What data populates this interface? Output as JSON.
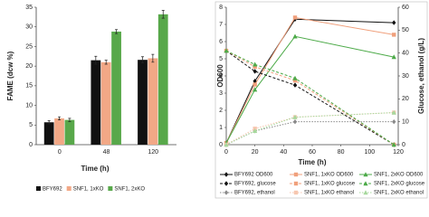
{
  "chart_data": [
    {
      "type": "bar",
      "ylabel": "FAME (dcw %)",
      "xlabel": "Time (h)",
      "categories": [
        "0",
        "48",
        "120"
      ],
      "series": [
        {
          "name": "BFY692",
          "color": "#111111",
          "values": [
            5.7,
            21.5,
            21.6
          ],
          "errors": [
            0.4,
            1.0,
            0.8
          ]
        },
        {
          "name": "SNF1, 1xKO",
          "color": "#f2a886",
          "values": [
            6.7,
            21.0,
            22.0
          ],
          "errors": [
            0.4,
            0.5,
            1.0
          ]
        },
        {
          "name": "SNF1, 2xKO",
          "color": "#58a84a",
          "values": [
            6.3,
            28.8,
            33.2
          ],
          "errors": [
            0.4,
            0.5,
            1.0
          ]
        }
      ],
      "ylim": [
        0,
        35
      ],
      "yticks": [
        0,
        5,
        10,
        15,
        20,
        25,
        30,
        35
      ]
    },
    {
      "type": "line",
      "ylabel": "OD600",
      "y2label": "Glucose, ethanol (g/L)",
      "xlabel": "Time (h)",
      "x": [
        0,
        20,
        48,
        117
      ],
      "series": [
        {
          "name": "BFY692 OD600",
          "color": "#111111",
          "marker": "diamond",
          "linestyle": "solid",
          "values": [
            0.1,
            3.7,
            7.3,
            7.1
          ]
        },
        {
          "name": "SNF1, 1xKO OD600",
          "color": "#f0a07c",
          "marker": "square",
          "linestyle": "solid",
          "values": [
            0.1,
            3.5,
            7.4,
            6.4
          ]
        },
        {
          "name": "SNF1, 2xKO OD600",
          "color": "#4caa48",
          "marker": "triangle",
          "linestyle": "solid",
          "values": [
            0.1,
            3.2,
            6.3,
            5.1
          ]
        },
        {
          "name": "BFY692, glucose",
          "color": "#111111",
          "marker": "diamond",
          "linestyle": "dashed",
          "axis": "y2",
          "values": [
            41,
            32,
            26,
            0
          ]
        },
        {
          "name": "SNF1, 1xKO glucose",
          "color": "#f0a07c",
          "marker": "square",
          "linestyle": "dashed",
          "axis": "y2",
          "values": [
            41,
            34,
            28,
            0
          ]
        },
        {
          "name": "SNF1, 2xKO glucose",
          "color": "#4caa48",
          "marker": "triangle",
          "linestyle": "dashed",
          "axis": "y2",
          "values": [
            41,
            35,
            29,
            0
          ]
        },
        {
          "name": "BFY692, ethanol",
          "color": "#8a8a8a",
          "marker": "diamond",
          "linestyle": "dotted",
          "axis": "y2",
          "values": [
            0,
            6,
            10,
            10
          ]
        },
        {
          "name": "SNF1, 1xKO ethanol",
          "color": "#f7c7b0",
          "marker": "square",
          "linestyle": "dotted",
          "axis": "y2",
          "values": [
            0,
            7,
            12,
            14
          ]
        },
        {
          "name": "SNF1, 2xKO ethanol",
          "color": "#a6d89c",
          "marker": "triangle",
          "linestyle": "dotted",
          "axis": "y2",
          "values": [
            0,
            6,
            12,
            14
          ]
        }
      ],
      "xlim": [
        0,
        120
      ],
      "xticks": [
        0,
        20,
        40,
        60,
        80,
        100,
        120
      ],
      "ylim": [
        0,
        8
      ],
      "yticks": [
        0,
        1,
        2,
        3,
        4,
        5,
        6,
        7,
        8
      ],
      "y2lim": [
        0,
        60
      ],
      "y2ticks": [
        0,
        10,
        20,
        30,
        40,
        50,
        60
      ]
    }
  ]
}
